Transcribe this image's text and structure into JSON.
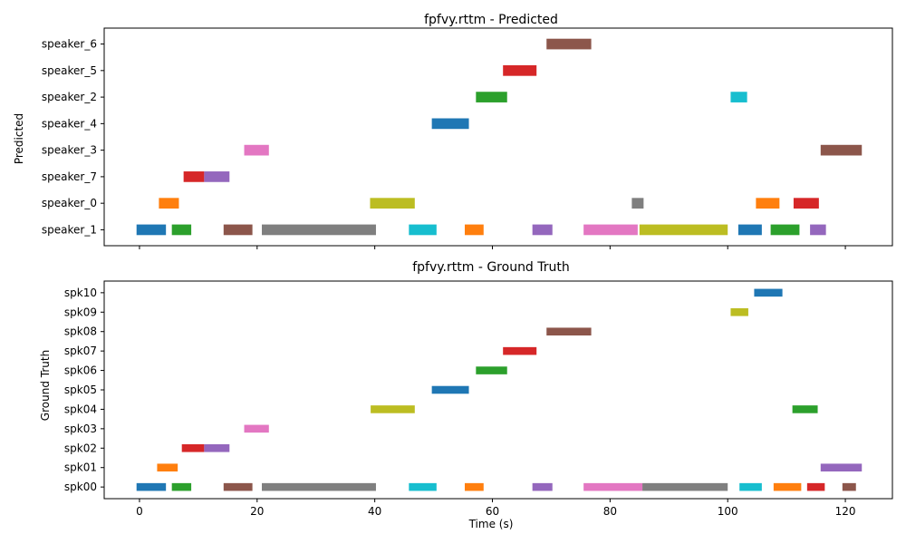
{
  "chart_data": [
    {
      "type": "timeline",
      "title": "fpfvy.rttm - Predicted",
      "ylabel": "Predicted",
      "xlabel": "",
      "xlim": [
        -6,
        128
      ],
      "xticks": [
        0,
        20,
        40,
        60,
        80,
        100,
        120
      ],
      "show_xtick_labels": false,
      "categories": [
        "speaker_1",
        "speaker_0",
        "speaker_7",
        "speaker_3",
        "speaker_4",
        "speaker_2",
        "speaker_5",
        "speaker_6"
      ],
      "segments": [
        {
          "speaker": "speaker_1",
          "start": -0.5,
          "end": 4.5,
          "color": "#1f77b4"
        },
        {
          "speaker": "speaker_1",
          "start": 5.5,
          "end": 8.8,
          "color": "#2ca02c"
        },
        {
          "speaker": "speaker_1",
          "start": 14.3,
          "end": 19.2,
          "color": "#8c564b"
        },
        {
          "speaker": "speaker_1",
          "start": 20.8,
          "end": 40.2,
          "color": "#7f7f7f"
        },
        {
          "speaker": "speaker_1",
          "start": 45.8,
          "end": 50.5,
          "color": "#17becf"
        },
        {
          "speaker": "speaker_1",
          "start": 55.3,
          "end": 58.5,
          "color": "#ff7f0e"
        },
        {
          "speaker": "speaker_1",
          "start": 66.8,
          "end": 70.2,
          "color": "#9467bd"
        },
        {
          "speaker": "speaker_1",
          "start": 75.5,
          "end": 84.7,
          "color": "#e377c2"
        },
        {
          "speaker": "speaker_1",
          "start": 85.0,
          "end": 100.0,
          "color": "#bcbd22"
        },
        {
          "speaker": "speaker_1",
          "start": 101.8,
          "end": 105.8,
          "color": "#1f77b4"
        },
        {
          "speaker": "speaker_1",
          "start": 107.3,
          "end": 112.2,
          "color": "#2ca02c"
        },
        {
          "speaker": "speaker_1",
          "start": 114.0,
          "end": 116.7,
          "color": "#9467bd"
        },
        {
          "speaker": "speaker_0",
          "start": 3.3,
          "end": 6.7,
          "color": "#ff7f0e"
        },
        {
          "speaker": "speaker_0",
          "start": 39.2,
          "end": 46.8,
          "color": "#bcbd22"
        },
        {
          "speaker": "speaker_0",
          "start": 83.7,
          "end": 85.7,
          "color": "#7f7f7f"
        },
        {
          "speaker": "speaker_0",
          "start": 104.8,
          "end": 108.8,
          "color": "#ff7f0e"
        },
        {
          "speaker": "speaker_0",
          "start": 111.2,
          "end": 115.5,
          "color": "#d62728"
        },
        {
          "speaker": "speaker_7",
          "start": 7.5,
          "end": 11.0,
          "color": "#d62728"
        },
        {
          "speaker": "speaker_7",
          "start": 11.0,
          "end": 15.3,
          "color": "#9467bd"
        },
        {
          "speaker": "speaker_3",
          "start": 17.8,
          "end": 22.0,
          "color": "#e377c2"
        },
        {
          "speaker": "speaker_3",
          "start": 115.8,
          "end": 122.8,
          "color": "#8c564b"
        },
        {
          "speaker": "speaker_4",
          "start": 49.7,
          "end": 56.0,
          "color": "#1f77b4"
        },
        {
          "speaker": "speaker_2",
          "start": 57.2,
          "end": 62.5,
          "color": "#2ca02c"
        },
        {
          "speaker": "speaker_2",
          "start": 100.5,
          "end": 103.3,
          "color": "#17becf"
        },
        {
          "speaker": "speaker_5",
          "start": 61.8,
          "end": 67.5,
          "color": "#d62728"
        },
        {
          "speaker": "speaker_6",
          "start": 69.2,
          "end": 76.8,
          "color": "#8c564b"
        }
      ]
    },
    {
      "type": "timeline",
      "title": "fpfvy.rttm - Ground Truth",
      "ylabel": "Ground Truth",
      "xlabel": "Time (s)",
      "xlim": [
        -6,
        128
      ],
      "xticks": [
        0,
        20,
        40,
        60,
        80,
        100,
        120
      ],
      "show_xtick_labels": true,
      "categories": [
        "spk00",
        "spk01",
        "spk02",
        "spk03",
        "spk04",
        "spk05",
        "spk06",
        "spk07",
        "spk08",
        "spk09",
        "spk10"
      ],
      "segments": [
        {
          "speaker": "spk00",
          "start": -0.5,
          "end": 4.5,
          "color": "#1f77b4"
        },
        {
          "speaker": "spk00",
          "start": 5.5,
          "end": 8.8,
          "color": "#2ca02c"
        },
        {
          "speaker": "spk00",
          "start": 14.3,
          "end": 19.2,
          "color": "#8c564b"
        },
        {
          "speaker": "spk00",
          "start": 20.8,
          "end": 40.2,
          "color": "#7f7f7f"
        },
        {
          "speaker": "spk00",
          "start": 45.8,
          "end": 50.5,
          "color": "#17becf"
        },
        {
          "speaker": "spk00",
          "start": 55.3,
          "end": 58.5,
          "color": "#ff7f0e"
        },
        {
          "speaker": "spk00",
          "start": 66.8,
          "end": 70.2,
          "color": "#9467bd"
        },
        {
          "speaker": "spk00",
          "start": 75.5,
          "end": 85.5,
          "color": "#e377c2"
        },
        {
          "speaker": "spk00",
          "start": 85.5,
          "end": 100.0,
          "color": "#7f7f7f"
        },
        {
          "speaker": "spk00",
          "start": 102.0,
          "end": 105.8,
          "color": "#17becf"
        },
        {
          "speaker": "spk00",
          "start": 107.8,
          "end": 112.5,
          "color": "#ff7f0e"
        },
        {
          "speaker": "spk00",
          "start": 113.5,
          "end": 116.5,
          "color": "#d62728"
        },
        {
          "speaker": "spk00",
          "start": 119.5,
          "end": 121.8,
          "color": "#8c564b"
        },
        {
          "speaker": "spk01",
          "start": 3.0,
          "end": 6.5,
          "color": "#ff7f0e"
        },
        {
          "speaker": "spk01",
          "start": 115.8,
          "end": 122.8,
          "color": "#9467bd"
        },
        {
          "speaker": "spk02",
          "start": 7.2,
          "end": 11.0,
          "color": "#d62728"
        },
        {
          "speaker": "spk02",
          "start": 11.0,
          "end": 15.3,
          "color": "#9467bd"
        },
        {
          "speaker": "spk03",
          "start": 17.8,
          "end": 22.0,
          "color": "#e377c2"
        },
        {
          "speaker": "spk04",
          "start": 39.3,
          "end": 46.8,
          "color": "#bcbd22"
        },
        {
          "speaker": "spk04",
          "start": 111.0,
          "end": 115.3,
          "color": "#2ca02c"
        },
        {
          "speaker": "spk05",
          "start": 49.7,
          "end": 56.0,
          "color": "#1f77b4"
        },
        {
          "speaker": "spk06",
          "start": 57.2,
          "end": 62.5,
          "color": "#2ca02c"
        },
        {
          "speaker": "spk07",
          "start": 61.8,
          "end": 67.5,
          "color": "#d62728"
        },
        {
          "speaker": "spk08",
          "start": 69.2,
          "end": 76.8,
          "color": "#8c564b"
        },
        {
          "speaker": "spk09",
          "start": 100.5,
          "end": 103.5,
          "color": "#bcbd22"
        },
        {
          "speaker": "spk10",
          "start": 104.5,
          "end": 109.3,
          "color": "#1f77b4"
        }
      ]
    }
  ]
}
